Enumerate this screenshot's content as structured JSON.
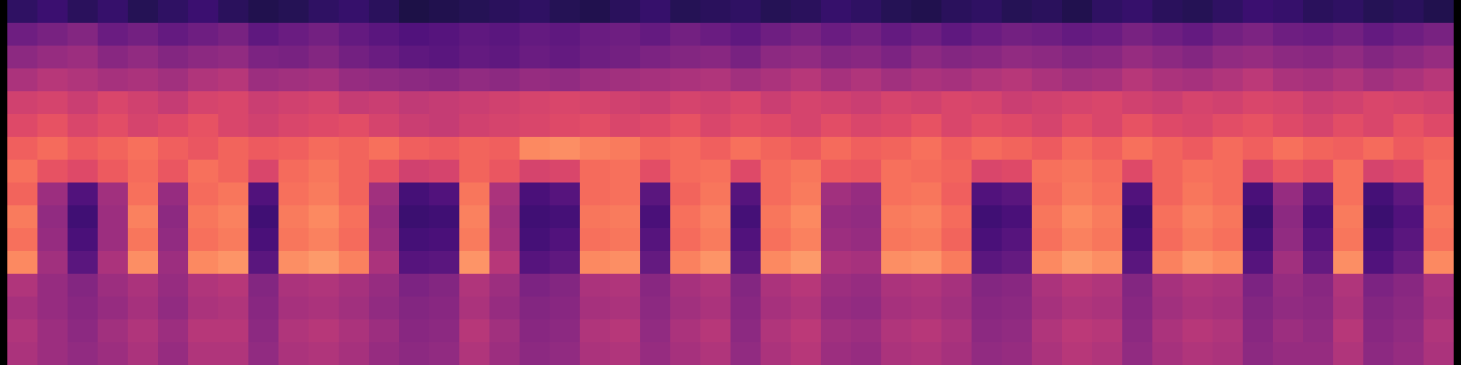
{
  "chart_data": {
    "type": "heatmap",
    "tick_labels": false,
    "color": "magma",
    "color_range": [
      -80,
      0
    ],
    "cells": [
      [
        -66,
        -64,
        -67,
        -65,
        -68,
        -66,
        -64,
        -67,
        -69,
        -68,
        -66,
        -65,
        -67,
        -70,
        -69,
        -68,
        -67,
        -66,
        -68,
        -69,
        -67,
        -65,
        -68,
        -67,
        -66,
        -68,
        -67,
        -65,
        -66,
        -68,
        -69,
        -67,
        -66,
        -68,
        -67,
        -69,
        -66,
        -65,
        -67,
        -68,
        -66,
        -64,
        -65,
        -67,
        -66,
        -68,
        -67,
        -69
      ],
      [
        -54,
        -52,
        -50,
        -55,
        -53,
        -56,
        -54,
        -52,
        -57,
        -55,
        -53,
        -56,
        -58,
        -60,
        -59,
        -57,
        -58,
        -56,
        -57,
        -55,
        -54,
        -56,
        -53,
        -55,
        -57,
        -54,
        -52,
        -55,
        -53,
        -56,
        -54,
        -57,
        -55,
        -53,
        -54,
        -56,
        -55,
        -52,
        -54,
        -56,
        -53,
        -51,
        -54,
        -55,
        -53,
        -56,
        -54,
        -52
      ],
      [
        -48,
        -46,
        -45,
        -49,
        -47,
        -50,
        -48,
        -47,
        -51,
        -52,
        -50,
        -53,
        -55,
        -57,
        -58,
        -56,
        -57,
        -55,
        -56,
        -54,
        -53,
        -51,
        -50,
        -49,
        -52,
        -48,
        -47,
        -50,
        -49,
        -51,
        -48,
        -50,
        -49,
        -47,
        -48,
        -50,
        -49,
        -46,
        -48,
        -50,
        -47,
        -46,
        -48,
        -49,
        -47,
        -50,
        -48,
        -46
      ],
      [
        -42,
        -40,
        -41,
        -43,
        -42,
        -44,
        -41,
        -40,
        -45,
        -44,
        -43,
        -46,
        -47,
        -48,
        -49,
        -47,
        -48,
        -46,
        -47,
        -45,
        -44,
        -43,
        -42,
        -41,
        -44,
        -42,
        -40,
        -43,
        -41,
        -44,
        -42,
        -43,
        -41,
        -40,
        -42,
        -44,
        -43,
        -40,
        -42,
        -43,
        -41,
        -39,
        -42,
        -43,
        -41,
        -44,
        -42,
        -40
      ],
      [
        -35,
        -34,
        -36,
        -33,
        -35,
        -37,
        -34,
        -33,
        -36,
        -35,
        -34,
        -37,
        -36,
        -38,
        -37,
        -36,
        -35,
        -34,
        -33,
        -34,
        -35,
        -36,
        -34,
        -35,
        -33,
        -36,
        -34,
        -35,
        -36,
        -34,
        -35,
        -33,
        -34,
        -36,
        -35,
        -34,
        -33,
        -35,
        -36,
        -34,
        -35,
        -33,
        -34,
        -36,
        -35,
        -33,
        -34,
        -35
      ],
      [
        -32,
        -30,
        -33,
        -31,
        -34,
        -32,
        -30,
        -33,
        -35,
        -33,
        -32,
        -31,
        -34,
        -36,
        -37,
        -35,
        -34,
        -33,
        -32,
        -31,
        -33,
        -32,
        -30,
        -33,
        -31,
        -32,
        -34,
        -31,
        -33,
        -32,
        -30,
        -33,
        -31,
        -32,
        -34,
        -31,
        -33,
        -30,
        -32,
        -33,
        -31,
        -30,
        -32,
        -34,
        -31,
        -33,
        -30,
        -32
      ],
      [
        -27,
        -25,
        -28,
        -26,
        -24,
        -27,
        -29,
        -26,
        -28,
        -27,
        -25,
        -26,
        -24,
        -27,
        -28,
        -26,
        -27,
        -20,
        -19,
        -21,
        -22,
        -26,
        -25,
        -27,
        -24,
        -26,
        -28,
        -25,
        -27,
        -26,
        -24,
        -27,
        -25,
        -26,
        -28,
        -25,
        -27,
        -24,
        -26,
        -28,
        -25,
        -27,
        -24,
        -26,
        -27,
        -25,
        -28,
        -26
      ],
      [
        -24,
        -30,
        -32,
        -28,
        -25,
        -29,
        -24,
        -26,
        -33,
        -25,
        -23,
        -26,
        -30,
        -35,
        -34,
        -26,
        -29,
        -34,
        -33,
        -25,
        -24,
        -31,
        -25,
        -24,
        -32,
        -25,
        -23,
        -28,
        -29,
        -24,
        -25,
        -26,
        -33,
        -32,
        -24,
        -23,
        -25,
        -32,
        -26,
        -24,
        -25,
        -33,
        -29,
        -31,
        -24,
        -34,
        -32,
        -25
      ],
      [
        -26,
        -45,
        -60,
        -44,
        -24,
        -46,
        -25,
        -23,
        -60,
        -24,
        -22,
        -26,
        -44,
        -62,
        -60,
        -23,
        -42,
        -61,
        -59,
        -25,
        -24,
        -58,
        -26,
        -23,
        -59,
        -25,
        -22,
        -44,
        -46,
        -24,
        -23,
        -27,
        -60,
        -58,
        -25,
        -22,
        -24,
        -60,
        -26,
        -23,
        -25,
        -61,
        -46,
        -58,
        -24,
        -62,
        -57,
        -25
      ],
      [
        -22,
        -47,
        -63,
        -45,
        -21,
        -48,
        -23,
        -21,
        -63,
        -22,
        -20,
        -24,
        -46,
        -64,
        -63,
        -21,
        -44,
        -63,
        -62,
        -23,
        -22,
        -61,
        -24,
        -21,
        -62,
        -23,
        -20,
        -46,
        -47,
        -22,
        -21,
        -25,
        -63,
        -61,
        -23,
        -20,
        -22,
        -63,
        -24,
        -21,
        -23,
        -64,
        -48,
        -61,
        -22,
        -64,
        -60,
        -23
      ],
      [
        -24,
        -46,
        -61,
        -45,
        -23,
        -47,
        -24,
        -22,
        -61,
        -23,
        -21,
        -25,
        -45,
        -62,
        -61,
        -22,
        -43,
        -62,
        -60,
        -24,
        -23,
        -59,
        -25,
        -22,
        -60,
        -24,
        -21,
        -45,
        -46,
        -23,
        -22,
        -26,
        -61,
        -59,
        -24,
        -21,
        -23,
        -61,
        -25,
        -22,
        -24,
        -62,
        -47,
        -59,
        -23,
        -62,
        -58,
        -24
      ],
      [
        -20,
        -44,
        -58,
        -42,
        -19,
        -45,
        -20,
        -18,
        -58,
        -19,
        -17,
        -21,
        -42,
        -59,
        -58,
        -18,
        -40,
        -59,
        -57,
        -20,
        -19,
        -56,
        -21,
        -18,
        -57,
        -20,
        -17,
        -42,
        -43,
        -19,
        -18,
        -22,
        -58,
        -56,
        -20,
        -17,
        -19,
        -58,
        -21,
        -18,
        -20,
        -59,
        -44,
        -56,
        -19,
        -60,
        -55,
        -20
      ],
      [
        -41,
        -46,
        -50,
        -45,
        -42,
        -46,
        -41,
        -40,
        -50,
        -42,
        -41,
        -43,
        -46,
        -51,
        -50,
        -41,
        -45,
        -51,
        -50,
        -42,
        -41,
        -49,
        -43,
        -41,
        -50,
        -42,
        -40,
        -45,
        -46,
        -42,
        -41,
        -43,
        -50,
        -49,
        -42,
        -40,
        -41,
        -50,
        -43,
        -41,
        -42,
        -51,
        -46,
        -49,
        -41,
        -51,
        -49,
        -42
      ],
      [
        -43,
        -46,
        -49,
        -46,
        -43,
        -47,
        -42,
        -41,
        -49,
        -43,
        -42,
        -44,
        -47,
        -50,
        -49,
        -42,
        -46,
        -50,
        -49,
        -43,
        -42,
        -48,
        -44,
        -42,
        -49,
        -43,
        -41,
        -46,
        -47,
        -43,
        -42,
        -44,
        -49,
        -48,
        -43,
        -41,
        -42,
        -49,
        -44,
        -42,
        -43,
        -50,
        -47,
        -48,
        -42,
        -50,
        -48,
        -43
      ],
      [
        -41,
        -45,
        -48,
        -44,
        -41,
        -45,
        -40,
        -40,
        -48,
        -41,
        -40,
        -42,
        -45,
        -49,
        -48,
        -40,
        -44,
        -49,
        -48,
        -41,
        -40,
        -47,
        -42,
        -40,
        -48,
        -41,
        -39,
        -44,
        -45,
        -41,
        -40,
        -42,
        -48,
        -47,
        -41,
        -39,
        -40,
        -48,
        -42,
        -40,
        -41,
        -49,
        -45,
        -47,
        -40,
        -49,
        -47,
        -41
      ],
      [
        -42,
        -45,
        -47,
        -45,
        -42,
        -46,
        -41,
        -41,
        -47,
        -42,
        -41,
        -43,
        -46,
        -48,
        -47,
        -41,
        -45,
        -48,
        -47,
        -42,
        -41,
        -46,
        -43,
        -41,
        -47,
        -42,
        -40,
        -45,
        -46,
        -42,
        -41,
        -43,
        -47,
        -46,
        -42,
        -40,
        -41,
        -47,
        -43,
        -41,
        -42,
        -48,
        -46,
        -46,
        -41,
        -48,
        -46,
        -42
      ]
    ]
  }
}
